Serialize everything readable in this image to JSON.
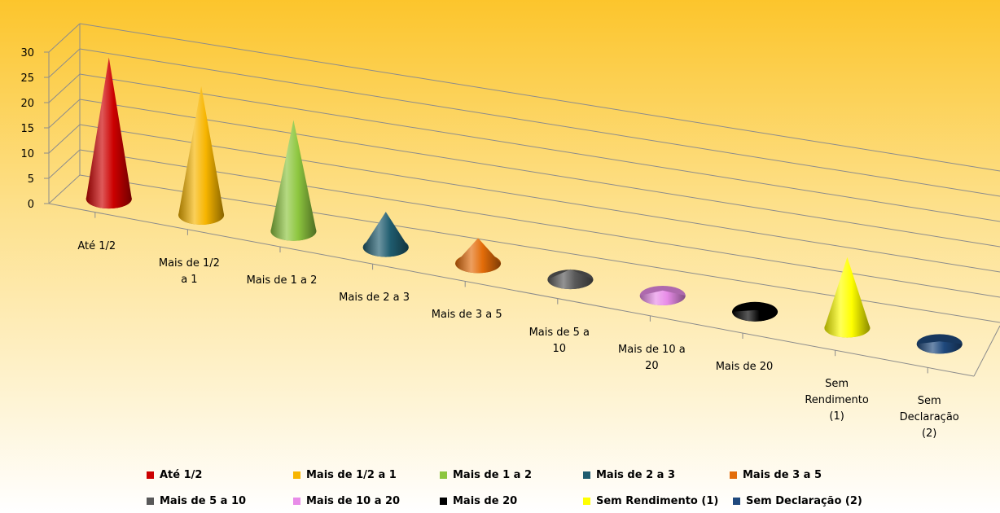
{
  "chart_data": {
    "type": "bar",
    "style": "3d-cone",
    "categories": [
      "Até 1/2",
      "Mais de  1/2\na 1",
      "Mais de 1 a 2",
      "Mais de 2 a 3",
      "Mais de 3 a 5",
      "Mais de 5 a\n10",
      "Mais de 10 a\n20",
      "Mais de 20",
      "Sem\nRendimento\n(1)",
      "Sem\nDeclaração\n(2)"
    ],
    "values": [
      28,
      25.5,
      22,
      7,
      5,
      2,
      1,
      0.3,
      14,
      0.5
    ],
    "colors": [
      "#cc0000",
      "#f7b500",
      "#8dc63f",
      "#1f5c6f",
      "#e36c09",
      "#595959",
      "#e88ce8",
      "#000000",
      "#ffff00",
      "#1f497d"
    ],
    "yticks": [
      "0",
      "5",
      "10",
      "15",
      "20",
      "25",
      "30"
    ],
    "ylim": [
      0,
      30
    ],
    "title": "",
    "xlabel": "",
    "ylabel": "",
    "legend": [
      "Até 1/2",
      "Mais de  1/2  a 1",
      "Mais de 1 a 2",
      "Mais de 2 a 3",
      "Mais de 3 a 5",
      "Mais de 5 a 10",
      "Mais de 10 a 20",
      "Mais de 20",
      "Sem Rendimento (1)",
      "Sem Declaração (2)"
    ],
    "legend_position": "bottom",
    "grid": true
  }
}
